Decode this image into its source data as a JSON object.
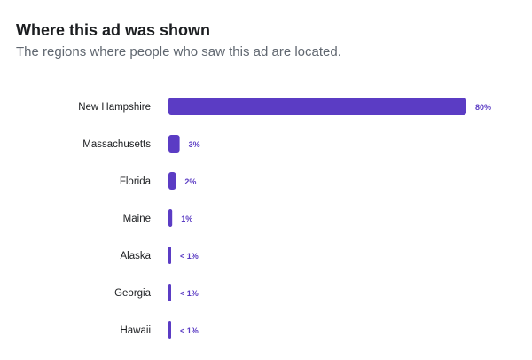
{
  "header": {
    "title": "Where this ad was shown",
    "subtitle": "The regions where people who saw this ad are located."
  },
  "colors": {
    "bar": "#5b3cc4",
    "label": "#1c1e21",
    "value": "#5b3cc4"
  },
  "chart_data": {
    "type": "bar",
    "orientation": "horizontal",
    "title": "",
    "xlabel": "",
    "ylabel": "",
    "categories": [
      "New Hampshire",
      "Massachusetts",
      "Florida",
      "Maine",
      "Alaska",
      "Georgia",
      "Hawaii"
    ],
    "values": [
      80,
      3,
      2,
      1,
      0.5,
      0.5,
      0.5
    ],
    "labels": [
      "80%",
      "3%",
      "2%",
      "1%",
      "< 1%",
      "< 1%",
      "< 1%"
    ],
    "xlim": [
      0,
      80
    ],
    "grid": false,
    "legend": "none"
  }
}
